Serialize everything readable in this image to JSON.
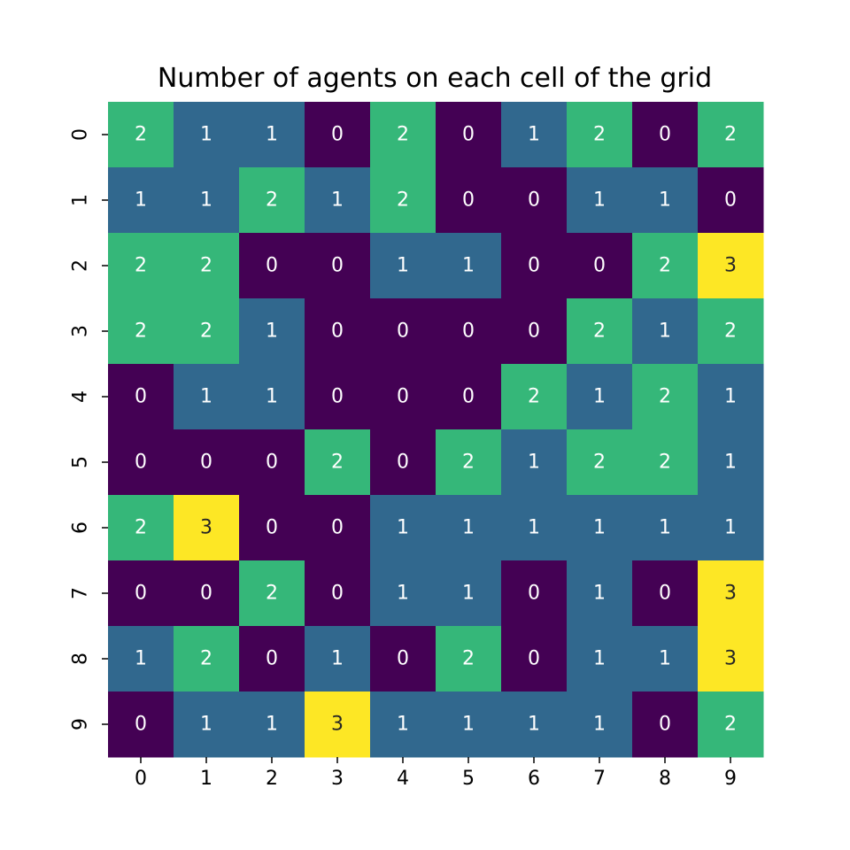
{
  "chart_data": {
    "type": "heatmap",
    "title": "Number of agents on each cell of the grid",
    "x_ticks": [
      "0",
      "1",
      "2",
      "3",
      "4",
      "5",
      "6",
      "7",
      "8",
      "9"
    ],
    "y_ticks": [
      "0",
      "1",
      "2",
      "3",
      "4",
      "5",
      "6",
      "7",
      "8",
      "9"
    ],
    "values": [
      [
        2,
        1,
        1,
        0,
        2,
        0,
        1,
        2,
        0,
        2
      ],
      [
        1,
        1,
        2,
        1,
        2,
        0,
        0,
        1,
        1,
        0
      ],
      [
        2,
        2,
        0,
        0,
        1,
        1,
        0,
        0,
        2,
        3
      ],
      [
        2,
        2,
        1,
        0,
        0,
        0,
        0,
        2,
        1,
        2
      ],
      [
        0,
        1,
        1,
        0,
        0,
        0,
        2,
        1,
        2,
        1
      ],
      [
        0,
        0,
        0,
        2,
        0,
        2,
        1,
        2,
        2,
        1
      ],
      [
        2,
        3,
        0,
        0,
        1,
        1,
        1,
        1,
        1,
        1
      ],
      [
        0,
        0,
        2,
        0,
        1,
        1,
        0,
        1,
        0,
        3
      ],
      [
        1,
        2,
        0,
        1,
        0,
        2,
        0,
        1,
        1,
        3
      ],
      [
        0,
        1,
        1,
        3,
        1,
        1,
        1,
        1,
        0,
        2
      ]
    ],
    "colormap": {
      "0": "#440154",
      "1": "#31688e",
      "2": "#35b779",
      "3": "#fde725"
    },
    "annotation_colors": {
      "dark": "#ffffff",
      "light": "#262626"
    },
    "colorbar": false,
    "grid": false
  }
}
